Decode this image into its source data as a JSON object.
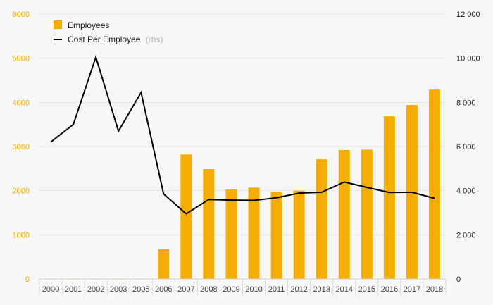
{
  "colors": {
    "background": "#f7f7f7",
    "bar": "#f5ad00",
    "line": "#000000",
    "left_axis_text": "#f0ad00",
    "right_axis_text": "#222222",
    "grid": "#e6e6e6"
  },
  "legend": {
    "employees_label": "Employees",
    "cost_label": "Cost Per Employee",
    "cost_note": "(rhs)",
    "placement": "top-left"
  },
  "chart_data": {
    "type": "bar",
    "categories": [
      "2000",
      "2001",
      "2002",
      "2003",
      "2005",
      "2006",
      "2007",
      "2008",
      "2009",
      "2010",
      "2011",
      "2012",
      "2013",
      "2014",
      "2015",
      "2016",
      "2017",
      "2018"
    ],
    "series": [
      {
        "name": "Employees",
        "type": "bar",
        "axis": "left",
        "values": [
          10,
          10,
          10,
          10,
          10,
          670,
          2820,
          2490,
          2030,
          2070,
          1980,
          2000,
          2710,
          2920,
          2930,
          3690,
          3940,
          4290
        ]
      },
      {
        "name": "Cost Per Employee",
        "type": "line",
        "axis": "right",
        "values": [
          6200,
          7000,
          10050,
          6700,
          8450,
          3850,
          2950,
          3600,
          3570,
          3560,
          3680,
          3890,
          3930,
          4390,
          4150,
          3920,
          3930,
          3650
        ]
      }
    ],
    "left_axis": {
      "ylim": [
        0,
        6000
      ],
      "ticks": [
        "0",
        "1000",
        "2000",
        "3000",
        "4000",
        "5000",
        "6000"
      ]
    },
    "right_axis": {
      "ylim": [
        0,
        12000
      ],
      "ticks": [
        "0",
        "2 000",
        "4 000",
        "6 000",
        "8 000",
        "10 000",
        "12 000"
      ]
    },
    "grid": true
  }
}
